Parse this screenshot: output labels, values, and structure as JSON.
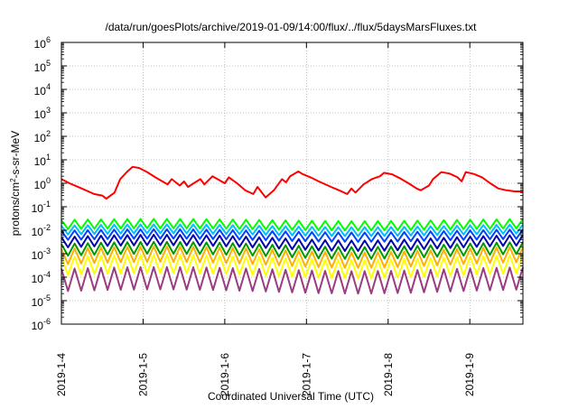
{
  "chart_data": {
    "type": "line",
    "title": "/data/run/goesPlots/archive/2019-01-09/14:00/flux/../flux/5daysMarsFluxes.txt",
    "xlabel": "Coordinated Universal Time (UTC)",
    "ylabel_main": "protons/cm",
    "ylabel_sup": "2",
    "ylabel_tail": "-s-sr-MeV",
    "xlim_days": [
      0,
      5.65
    ],
    "y_log_range": [
      -6,
      6
    ],
    "y_scale": "log",
    "grid": true,
    "x_ticks": [
      {
        "day": 0,
        "label": "2019-1-4"
      },
      {
        "day": 1,
        "label": "2019-1-5"
      },
      {
        "day": 2,
        "label": "2019-1-6"
      },
      {
        "day": 3,
        "label": "2019-1-7"
      },
      {
        "day": 4,
        "label": "2019-1-8"
      },
      {
        "day": 5,
        "label": "2019-1-9"
      }
    ],
    "y_ticks": [
      {
        "exp": -6,
        "base": "10",
        "sup": "-6"
      },
      {
        "exp": -5,
        "base": "10",
        "sup": "-5"
      },
      {
        "exp": -4,
        "base": "10",
        "sup": "-4"
      },
      {
        "exp": -3,
        "base": "10",
        "sup": "-3"
      },
      {
        "exp": -2,
        "base": "10",
        "sup": "-2"
      },
      {
        "exp": -1,
        "base": "10",
        "sup": "-1"
      },
      {
        "exp": 0,
        "base": "10",
        "sup": "0"
      },
      {
        "exp": 1,
        "base": "10",
        "sup": "1"
      },
      {
        "exp": 2,
        "base": "10",
        "sup": "2"
      },
      {
        "exp": 3,
        "base": "10",
        "sup": "3"
      },
      {
        "exp": 4,
        "base": "10",
        "sup": "4"
      },
      {
        "exp": 5,
        "base": "10",
        "sup": "5"
      },
      {
        "exp": 6,
        "base": "10",
        "sup": "6"
      }
    ],
    "series": [
      {
        "color": "#ff0000",
        "x": [
          0,
          0.1,
          0.25,
          0.4,
          0.5,
          0.55,
          0.65,
          0.72,
          0.8,
          0.87,
          0.95,
          1.05,
          1.15,
          1.3,
          1.35,
          1.45,
          1.5,
          1.55,
          1.7,
          1.75,
          1.85,
          2.0,
          2.05,
          2.15,
          2.25,
          2.35,
          2.4,
          2.5,
          2.6,
          2.7,
          2.75,
          2.8,
          2.9,
          2.95,
          3.05,
          3.15,
          3.3,
          3.4,
          3.5,
          3.55,
          3.6,
          3.7,
          3.8,
          3.9,
          3.95,
          4.05,
          4.15,
          4.25,
          4.35,
          4.4,
          4.5,
          4.55,
          4.65,
          4.75,
          4.85,
          4.9,
          4.95,
          5.05,
          5.15,
          5.25,
          5.35,
          5.45,
          5.55,
          5.65
        ],
        "y": [
          1.5,
          1.0,
          0.6,
          0.35,
          0.3,
          0.22,
          0.4,
          1.5,
          3.0,
          5.0,
          4.5,
          3.0,
          1.8,
          0.9,
          1.5,
          0.8,
          1.2,
          0.7,
          1.5,
          0.9,
          2.0,
          1.0,
          1.8,
          1.0,
          0.5,
          0.35,
          0.7,
          0.25,
          0.5,
          1.5,
          1.1,
          2.0,
          3.2,
          2.5,
          1.8,
          1.2,
          0.7,
          0.5,
          0.35,
          0.6,
          0.4,
          0.9,
          1.5,
          2.0,
          2.8,
          2.4,
          1.6,
          1.0,
          0.6,
          0.5,
          0.8,
          1.5,
          3.0,
          2.6,
          1.8,
          1.2,
          3.0,
          2.5,
          1.8,
          1.0,
          0.6,
          0.5,
          0.45,
          0.45
        ]
      },
      {
        "color": "#00ff00",
        "base": 0.011,
        "amp": 2.5,
        "trend": 0.0012
      },
      {
        "color": "#00bfff",
        "base": 0.0065,
        "amp": 2.4,
        "trend": 0.0009
      },
      {
        "color": "#0044ff",
        "base": 0.0038,
        "amp": 2.5,
        "trend": 0.0006
      },
      {
        "color": "#0000aa",
        "base": 0.0018,
        "amp": 2.8,
        "trend": 0.0005
      },
      {
        "color": "#009a00",
        "base": 0.0008,
        "amp": 3.2,
        "trend": 0.0002
      },
      {
        "color": "#ffb000",
        "base": 0.00035,
        "amp": 4.5,
        "trend": 0.0001
      },
      {
        "color": "#ffff00",
        "base": 0.00012,
        "amp": 6.0,
        "trend": 3e-05
      },
      {
        "color": "#9a3c80",
        "base": 2.5e-05,
        "amp": 9.0,
        "trend": 5e-06
      }
    ]
  }
}
